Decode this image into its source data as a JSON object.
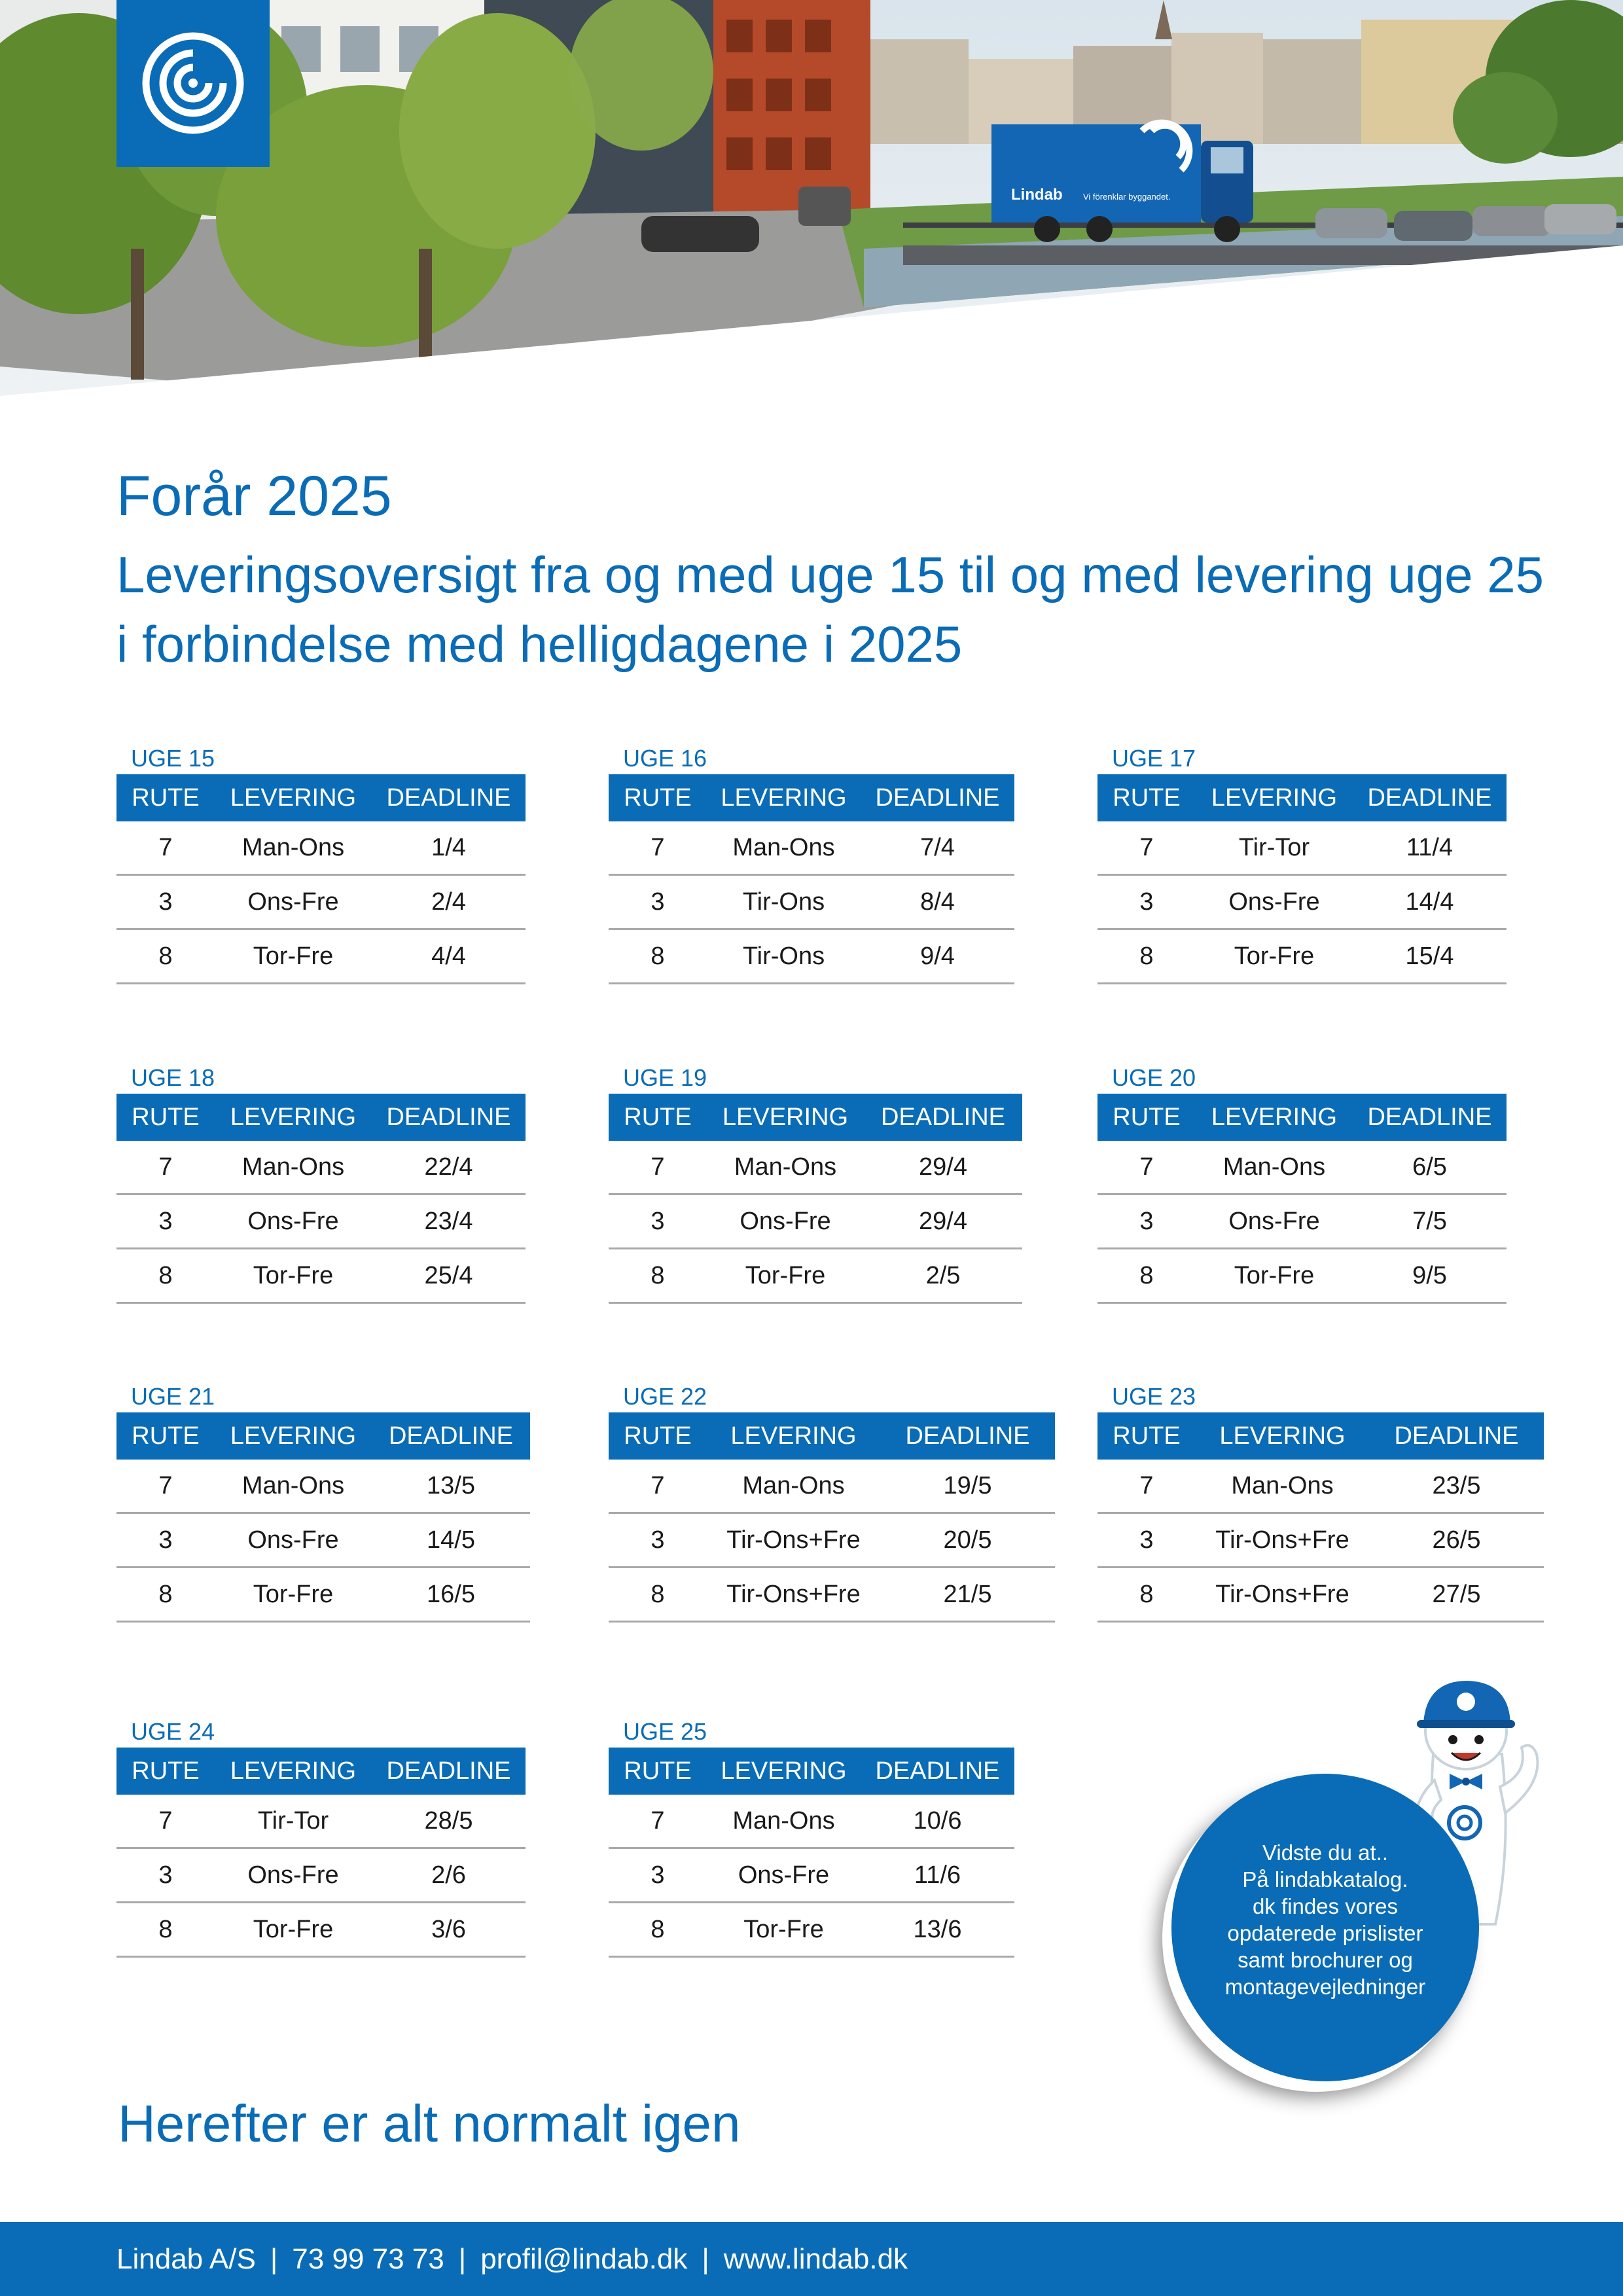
{
  "title": "Forår 2025",
  "subtitle": "Leveringsoversigt fra og med uge 15 til og med levering uge 25 i forbindelse med helligdagene i 2025",
  "hero": {
    "truck_brand": "Lindab",
    "truck_slogan": "Vi förenklar byggandet."
  },
  "columns": [
    "RUTE",
    "LEVERING",
    "DEADLINE"
  ],
  "weeks": [
    {
      "label": "UGE 15",
      "rows": [
        [
          "7",
          "Man-Ons",
          "1/4"
        ],
        [
          "3",
          "Ons-Fre",
          "2/4"
        ],
        [
          "8",
          "Tor-Fre",
          "4/4"
        ]
      ]
    },
    {
      "label": "UGE 16",
      "rows": [
        [
          "7",
          "Man-Ons",
          "7/4"
        ],
        [
          "3",
          "Tir-Ons",
          "8/4"
        ],
        [
          "8",
          "Tir-Ons",
          "9/4"
        ]
      ]
    },
    {
      "label": "UGE 17",
      "rows": [
        [
          "7",
          "Tir-Tor",
          "11/4"
        ],
        [
          "3",
          "Ons-Fre",
          "14/4"
        ],
        [
          "8",
          "Tor-Fre",
          "15/4"
        ]
      ]
    },
    {
      "label": "UGE 18",
      "rows": [
        [
          "7",
          "Man-Ons",
          "22/4"
        ],
        [
          "3",
          "Ons-Fre",
          "23/4"
        ],
        [
          "8",
          "Tor-Fre",
          "25/4"
        ]
      ]
    },
    {
      "label": "UGE 19",
      "rows": [
        [
          "7",
          "Man-Ons",
          "29/4"
        ],
        [
          "3",
          "Ons-Fre",
          "29/4"
        ],
        [
          "8",
          "Tor-Fre",
          "2/5"
        ]
      ]
    },
    {
      "label": "UGE 20",
      "rows": [
        [
          "7",
          "Man-Ons",
          "6/5"
        ],
        [
          "3",
          "Ons-Fre",
          "7/5"
        ],
        [
          "8",
          "Tor-Fre",
          "9/5"
        ]
      ]
    },
    {
      "label": "UGE 21",
      "rows": [
        [
          "7",
          "Man-Ons",
          "13/5"
        ],
        [
          "3",
          "Ons-Fre",
          "14/5"
        ],
        [
          "8",
          "Tor-Fre",
          "16/5"
        ]
      ]
    },
    {
      "label": "UGE 22",
      "rows": [
        [
          "7",
          "Man-Ons",
          "19/5"
        ],
        [
          "3",
          "Tir-Ons+Fre",
          "20/5"
        ],
        [
          "8",
          "Tir-Ons+Fre",
          "21/5"
        ]
      ]
    },
    {
      "label": "UGE 23",
      "rows": [
        [
          "7",
          "Man-Ons",
          "23/5"
        ],
        [
          "3",
          "Tir-Ons+Fre",
          "26/5"
        ],
        [
          "8",
          "Tir-Ons+Fre",
          "27/5"
        ]
      ]
    },
    {
      "label": "UGE 24",
      "rows": [
        [
          "7",
          "Tir-Tor",
          "28/5"
        ],
        [
          "3",
          "Ons-Fre",
          "2/6"
        ],
        [
          "8",
          "Tor-Fre",
          "3/6"
        ]
      ]
    },
    {
      "label": "UGE 25",
      "rows": [
        [
          "7",
          "Man-Ons",
          "10/6"
        ],
        [
          "3",
          "Ons-Fre",
          "11/6"
        ],
        [
          "8",
          "Tor-Fre",
          "13/6"
        ]
      ]
    }
  ],
  "bubble": {
    "lines": [
      "Vidste du at..",
      "På lindabkatalog.",
      "dk findes vores",
      "opdaterede prislister",
      "samt brochurer og",
      "montagevejledninger"
    ]
  },
  "closing": "Herefter er alt normalt igen",
  "footer": {
    "company": "Lindab A/S",
    "phone": "73 99 73 73",
    "email": "profil@lindab.dk",
    "website": "www.lindab.dk"
  },
  "colors": {
    "brand_blue": "#0a6cb6",
    "rule_gray": "#a9a9a9"
  },
  "icons": [
    "lindab-logo-icon",
    "mascot-icon"
  ]
}
